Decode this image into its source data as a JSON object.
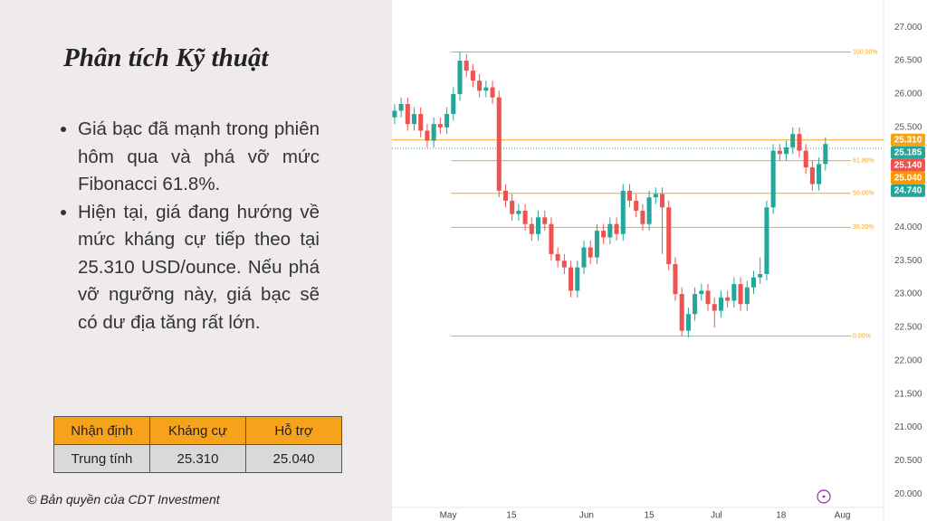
{
  "title": "Phân tích Kỹ thuật",
  "bullets": [
    "Giá bạc đã mạnh trong phiên hôm qua và phá vỡ mức Fibonacci 61.8%.",
    "Hiện tại, giá đang hướng về mức kháng cự tiếp theo tại 25.310 USD/ounce. Nếu phá vỡ ngưỡng này, giá bạc sẽ có dư địa tăng rất lớn."
  ],
  "table": {
    "header": [
      "Nhận định",
      "Kháng cự",
      "Hỗ trợ"
    ],
    "rows": [
      [
        "Trung tính",
        "25.310",
        "25.040"
      ]
    ]
  },
  "copyright": "© Bản quyền của CDT Investment",
  "chart_data": {
    "type": "candlestick",
    "up_color": "#26a69a",
    "down_color": "#ef5350",
    "open": [
      25.65,
      25.75,
      25.85,
      25.55,
      25.7,
      25.45,
      25.3,
      25.55,
      25.5,
      25.7,
      26.0,
      26.5,
      26.35,
      26.2,
      26.05,
      26.1,
      25.95,
      24.55,
      24.4,
      24.2,
      24.25,
      24.05,
      23.9,
      24.15,
      24.05,
      23.6,
      23.5,
      23.4,
      23.05,
      23.4,
      23.7,
      23.55,
      23.95,
      23.85,
      24.05,
      23.9,
      24.55,
      24.4,
      24.25,
      24.05,
      24.45,
      24.5,
      24.3,
      23.45,
      23.0,
      22.45,
      22.7,
      23.0,
      23.05,
      22.85,
      22.75,
      22.95,
      22.9,
      23.15,
      22.85,
      23.1,
      23.25,
      23.3,
      24.3,
      25.15,
      25.1,
      25.2,
      25.4,
      25.15,
      24.9,
      24.65,
      24.95
    ],
    "high": [
      25.85,
      25.95,
      25.95,
      25.8,
      25.8,
      25.55,
      25.65,
      25.65,
      25.8,
      26.1,
      26.63,
      26.6,
      26.45,
      26.3,
      26.2,
      26.2,
      26.05,
      24.65,
      24.5,
      24.35,
      24.35,
      24.15,
      24.25,
      24.25,
      24.15,
      23.7,
      23.6,
      23.5,
      23.5,
      23.8,
      23.8,
      24.05,
      24.05,
      24.15,
      24.15,
      24.65,
      24.65,
      24.5,
      24.35,
      24.55,
      24.6,
      24.6,
      24.4,
      23.55,
      23.1,
      22.8,
      23.1,
      23.15,
      23.15,
      22.95,
      23.05,
      23.05,
      23.25,
      23.25,
      23.2,
      23.35,
      23.55,
      24.4,
      25.25,
      25.25,
      25.3,
      25.5,
      25.5,
      25.25,
      25.0,
      25.05,
      25.35
    ],
    "low": [
      25.55,
      25.65,
      25.45,
      25.45,
      25.35,
      25.2,
      25.2,
      25.4,
      25.4,
      25.6,
      25.9,
      26.25,
      26.1,
      25.95,
      25.95,
      25.85,
      24.45,
      24.3,
      24.1,
      24.1,
      23.95,
      23.8,
      23.8,
      23.95,
      23.5,
      23.4,
      23.3,
      22.95,
      22.95,
      23.3,
      23.45,
      23.45,
      23.75,
      23.75,
      23.8,
      23.8,
      24.3,
      24.15,
      23.95,
      23.95,
      24.35,
      23.6,
      23.35,
      22.9,
      22.37,
      22.35,
      22.6,
      22.9,
      22.75,
      22.5,
      22.65,
      22.8,
      22.8,
      22.75,
      22.75,
      23.0,
      23.15,
      23.2,
      24.2,
      25.0,
      25.0,
      25.1,
      25.05,
      24.8,
      24.55,
      24.55,
      24.85
    ],
    "close": [
      25.75,
      25.85,
      25.55,
      25.7,
      25.45,
      25.3,
      25.55,
      25.5,
      25.7,
      26.0,
      26.5,
      26.35,
      26.2,
      26.05,
      26.1,
      25.95,
      24.55,
      24.4,
      24.2,
      24.25,
      24.05,
      23.9,
      24.15,
      24.05,
      23.6,
      23.5,
      23.4,
      23.05,
      23.4,
      23.7,
      23.55,
      23.95,
      23.85,
      24.05,
      23.9,
      24.55,
      24.4,
      24.25,
      24.05,
      24.45,
      24.5,
      24.3,
      23.45,
      23.0,
      22.45,
      22.7,
      23.0,
      23.05,
      22.85,
      22.75,
      22.95,
      22.9,
      23.15,
      22.85,
      23.1,
      23.25,
      23.3,
      24.3,
      25.15,
      25.1,
      25.2,
      25.4,
      25.15,
      24.9,
      24.65,
      24.95,
      25.25
    ],
    "xlim": [
      -0.4,
      74.9
    ],
    "xticks": [
      {
        "value": 8.2,
        "label": "May"
      },
      {
        "value": 17.9,
        "label": "15"
      },
      {
        "value": 29.4,
        "label": "Jun"
      },
      {
        "value": 39.0,
        "label": "15"
      },
      {
        "value": 49.3,
        "label": "Jul"
      },
      {
        "value": 59.2,
        "label": "18"
      },
      {
        "value": 68.6,
        "label": "Aug"
      }
    ],
    "ylim": [
      19.8,
      27.41
    ],
    "yticks": [
      {
        "value": 20,
        "label": "20.000"
      },
      {
        "value": 20.5,
        "label": "20.500"
      },
      {
        "value": 21,
        "label": "21.000"
      },
      {
        "value": 21.5,
        "label": "21.500"
      },
      {
        "value": 22,
        "label": "22.000"
      },
      {
        "value": 22.5,
        "label": "22.500"
      },
      {
        "value": 23,
        "label": "23.000"
      },
      {
        "value": 23.5,
        "label": "23.500"
      },
      {
        "value": 24,
        "label": "24.000"
      },
      {
        "value": 24.5,
        "label": "24.500"
      },
      {
        "value": 25,
        "label": "25.000"
      },
      {
        "value": 25.5,
        "label": "25.500"
      },
      {
        "value": 26,
        "label": "26.000"
      },
      {
        "value": 26.5,
        "label": "26.500"
      },
      {
        "value": 27,
        "label": "27.000"
      }
    ],
    "grid": false,
    "fib_color": "#f5a623",
    "fib_levels": [
      {
        "value": 26.63,
        "label": "100.00%"
      },
      {
        "value": 25.0,
        "label": "61.80%"
      },
      {
        "value": 24.51,
        "label": "50.00%"
      },
      {
        "value": 24.0,
        "label": "38.20%"
      },
      {
        "value": 22.37,
        "label": "0.00%"
      }
    ],
    "price_tags": [
      {
        "value": 25.31,
        "label": "25.310",
        "color": "#f7a21b",
        "line": "solid"
      },
      {
        "value": 25.185,
        "label": "25.185",
        "color": "#26a69a",
        "line": "dotted"
      },
      {
        "value": 25.14,
        "label": "25.140",
        "color": "#ef5350"
      },
      {
        "value": 25.04,
        "label": "25.040",
        "color": "#ff9800"
      },
      {
        "value": 24.74,
        "label": "24.740",
        "color": "#26a69a"
      }
    ]
  }
}
